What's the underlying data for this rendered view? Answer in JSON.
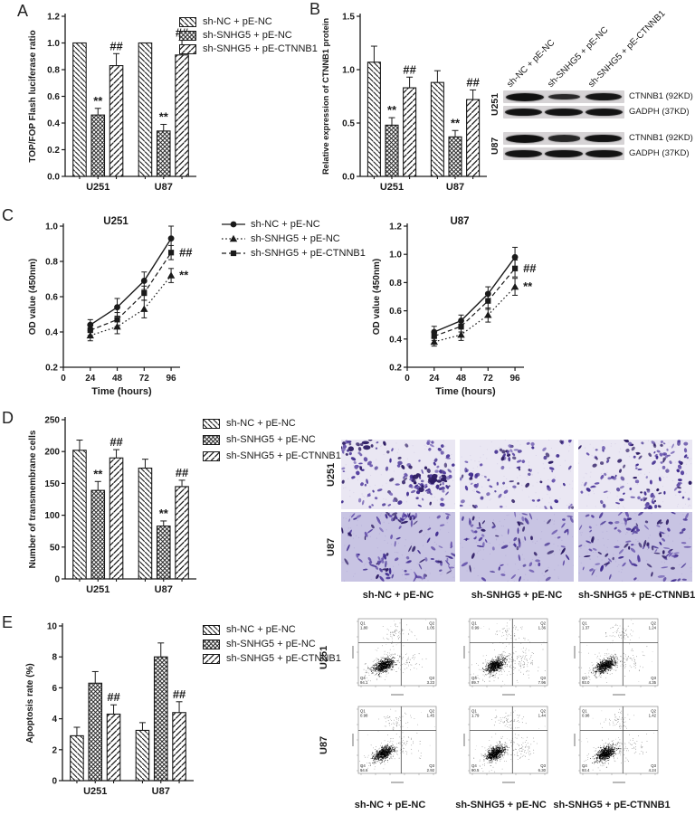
{
  "panel_labels": {
    "A": "A",
    "B": "B",
    "C": "C",
    "D": "D",
    "E": "E"
  },
  "groups": [
    "sh-NC + pE-NC",
    "sh-SNHG5 + pE-NC",
    "sh-SNHG5 + pE-CTNNB1"
  ],
  "cell_lines": [
    "U251",
    "U87"
  ],
  "accent_color": "#1a1a1a",
  "chart_data": [
    {
      "id": "A",
      "type": "bar",
      "panel": "A",
      "ylabel": "TOP/FOP Flash luciferase ratio",
      "ylim": [
        0,
        1.2
      ],
      "yticks": [
        "0.0",
        "0.2",
        "0.4",
        "0.6",
        "0.8",
        "1.0",
        "1.2"
      ],
      "categories": [
        "U251",
        "U87"
      ],
      "legend_position": "right-top",
      "grid": false,
      "series": [
        {
          "name": "sh-NC + pE-NC",
          "hatch": "diag-back",
          "values": [
            1.0,
            1.0
          ],
          "errors": [
            0,
            0
          ],
          "annotations": [
            "",
            ""
          ]
        },
        {
          "name": "sh-SNHG5 + pE-NC",
          "hatch": "cross",
          "values": [
            0.46,
            0.34
          ],
          "errors": [
            0.05,
            0.05
          ],
          "annotations": [
            "**",
            "**"
          ]
        },
        {
          "name": "sh-SNHG5 + pE-CTNNB1",
          "hatch": "diag-fwd",
          "values": [
            0.83,
            0.91
          ],
          "errors": [
            0.09,
            0.11
          ],
          "annotations": [
            "##",
            "##"
          ]
        }
      ]
    },
    {
      "id": "B",
      "type": "bar",
      "panel": "B",
      "ylabel": "Relative expression of CTNNB1 protein",
      "ylim": [
        0,
        1.5
      ],
      "yticks": [
        "0.0",
        "0.5",
        "1.0",
        "1.5"
      ],
      "categories": [
        "U251",
        "U87"
      ],
      "legend_position": "none",
      "grid": false,
      "series": [
        {
          "name": "sh-NC + pE-NC",
          "hatch": "diag-back",
          "values": [
            1.07,
            0.88
          ],
          "errors": [
            0.15,
            0.11
          ],
          "annotations": [
            "",
            ""
          ]
        },
        {
          "name": "sh-SNHG5 + pE-NC",
          "hatch": "cross",
          "values": [
            0.48,
            0.37
          ],
          "errors": [
            0.07,
            0.06
          ],
          "annotations": [
            "**",
            "**"
          ]
        },
        {
          "name": "sh-SNHG5 + pE-CTNNB1",
          "hatch": "diag-fwd",
          "values": [
            0.83,
            0.72
          ],
          "errors": [
            0.1,
            0.09
          ],
          "annotations": [
            "##",
            "##"
          ]
        }
      ]
    },
    {
      "id": "C-U251",
      "type": "line",
      "panel": "C",
      "title": "U251",
      "xlabel": "Time (hours)",
      "ylabel": "OD value (450nm)",
      "x": [
        24,
        48,
        72,
        96
      ],
      "xticks": [
        "0",
        "24",
        "48",
        "72",
        "96"
      ],
      "xlim": [
        0,
        104
      ],
      "ylim": [
        0.2,
        1.0
      ],
      "yticks": [
        "0.2",
        "0.4",
        "0.6",
        "0.8",
        "1.0"
      ],
      "legend_position": "right-of-plot",
      "grid": false,
      "series": [
        {
          "name": "sh-NC + pE-NC",
          "marker": "circle",
          "line": "solid",
          "values": [
            0.44,
            0.54,
            0.69,
            0.93
          ],
          "errors": [
            0.03,
            0.05,
            0.05,
            0.07
          ],
          "annotation": ""
        },
        {
          "name": "sh-SNHG5 + pE-NC",
          "marker": "triangle",
          "line": "dotted",
          "values": [
            0.38,
            0.43,
            0.53,
            0.72
          ],
          "errors": [
            0.03,
            0.04,
            0.05,
            0.04
          ],
          "annotation": "**"
        },
        {
          "name": "sh-SNHG5 + pE-CTNNB1",
          "marker": "square",
          "line": "dashed",
          "values": [
            0.41,
            0.47,
            0.62,
            0.85
          ],
          "errors": [
            0.03,
            0.04,
            0.04,
            0.04
          ],
          "annotation": "##"
        }
      ]
    },
    {
      "id": "C-U87",
      "type": "line",
      "panel": "C",
      "title": "U87",
      "xlabel": "Time (hours)",
      "ylabel": "OD value (450nm)",
      "x": [
        24,
        48,
        72,
        96
      ],
      "xticks": [
        "0",
        "24",
        "48",
        "72",
        "96"
      ],
      "xlim": [
        0,
        104
      ],
      "ylim": [
        0.2,
        1.2
      ],
      "yticks": [
        "0.2",
        "0.4",
        "0.6",
        "0.8",
        "1.0",
        "1.2"
      ],
      "legend_position": "none",
      "grid": false,
      "series": [
        {
          "name": "sh-NC + pE-NC",
          "marker": "circle",
          "line": "solid",
          "values": [
            0.45,
            0.53,
            0.72,
            0.98
          ],
          "errors": [
            0.04,
            0.04,
            0.05,
            0.07
          ],
          "annotation": ""
        },
        {
          "name": "sh-SNHG5 + pE-NC",
          "marker": "triangle",
          "line": "dotted",
          "values": [
            0.38,
            0.43,
            0.57,
            0.77
          ],
          "errors": [
            0.03,
            0.04,
            0.05,
            0.06
          ],
          "annotation": "**"
        },
        {
          "name": "sh-SNHG5 + pE-CTNNB1",
          "marker": "square",
          "line": "dashed",
          "values": [
            0.42,
            0.49,
            0.67,
            0.9
          ],
          "errors": [
            0.03,
            0.04,
            0.06,
            0.06
          ],
          "annotation": "##"
        }
      ]
    },
    {
      "id": "D",
      "type": "bar",
      "panel": "D",
      "ylabel": "Number of transmembrane cells",
      "ylim": [
        0,
        250
      ],
      "yticks": [
        "0",
        "50",
        "100",
        "150",
        "200",
        "250"
      ],
      "categories": [
        "U251",
        "U87"
      ],
      "legend_position": "right-top",
      "grid": false,
      "series": [
        {
          "name": "sh-NC + pE-NC",
          "hatch": "diag-back",
          "values": [
            202,
            174
          ],
          "errors": [
            16,
            14
          ],
          "annotations": [
            "",
            ""
          ]
        },
        {
          "name": "sh-SNHG5 + pE-NC",
          "hatch": "cross",
          "values": [
            139,
            83
          ],
          "errors": [
            14,
            8
          ],
          "annotations": [
            "**",
            "**"
          ]
        },
        {
          "name": "sh-SNHG5 + pE-CTNNB1",
          "hatch": "diag-fwd",
          "values": [
            190,
            145
          ],
          "errors": [
            13,
            10
          ],
          "annotations": [
            "##",
            "##"
          ]
        }
      ]
    },
    {
      "id": "E",
      "type": "bar",
      "panel": "E",
      "ylabel": "Apoptosis rate (%)",
      "ylim": [
        0,
        10
      ],
      "yticks": [
        "0",
        "2",
        "4",
        "6",
        "8",
        "10"
      ],
      "categories": [
        "U251",
        "U87"
      ],
      "legend_position": "right-top",
      "grid": false,
      "series": [
        {
          "name": "sh-NC + pE-NC",
          "hatch": "diag-back",
          "values": [
            2.9,
            3.25
          ],
          "errors": [
            0.55,
            0.5
          ],
          "annotations": [
            "",
            ""
          ]
        },
        {
          "name": "sh-SNHG5 + pE-NC",
          "hatch": "cross",
          "values": [
            6.3,
            8.0
          ],
          "errors": [
            0.75,
            0.9
          ],
          "annotations": [
            "",
            ""
          ]
        },
        {
          "name": "sh-SNHG5 + pE-CTNNB1",
          "hatch": "diag-fwd",
          "values": [
            4.3,
            4.4
          ],
          "errors": [
            0.6,
            0.7
          ],
          "annotations": [
            "##",
            "##"
          ]
        }
      ]
    }
  ],
  "western_blot": {
    "lanes": [
      "sh-NC + pE-NC",
      "sh-SNHG5 + pE-NC",
      "sh-SNHG5 + pE-CTNNB1"
    ],
    "groups": [
      {
        "cell_line": "U251",
        "rows": [
          {
            "label": "CTNNB1 (92KD)",
            "band_intensities": [
              1.0,
              0.55,
              0.9
            ]
          },
          {
            "label": "GADPH (37KD)",
            "band_intensities": [
              0.95,
              0.95,
              0.95
            ]
          }
        ]
      },
      {
        "cell_line": "U87",
        "rows": [
          {
            "label": "CTNNB1 (92KD)",
            "band_intensities": [
              1.0,
              0.6,
              0.95
            ]
          },
          {
            "label": "GADPH (37KD)",
            "band_intensities": [
              0.95,
              0.95,
              0.95
            ]
          }
        ]
      }
    ]
  },
  "transwell": {
    "row_labels": [
      "U251",
      "U87"
    ],
    "col_labels": [
      "sh-NC + pE-NC",
      "sh-SNHG5 + pE-NC",
      "sh-SNHG5 + pE-CTNNB1"
    ],
    "relative_density": [
      [
        1.0,
        0.55,
        0.8
      ],
      [
        0.95,
        0.55,
        0.75
      ]
    ],
    "bg_colors": [
      "#eae7f3",
      "#c8c4e3"
    ],
    "cell_colors": [
      "#3f2b8e",
      "#55409f",
      "#2c1b63",
      "#6a57ae"
    ]
  },
  "flow_cytometry": {
    "row_labels": [
      "U251",
      "U87"
    ],
    "col_labels": [
      "sh-NC + pE-NC",
      "sh-SNHG5 + pE-NC",
      "sh-SNHG5 + pE-CTNNB1"
    ],
    "plots": [
      [
        {
          "Q1": "1.80",
          "Q2": "1.05",
          "Q3": "3.23",
          "Q4": "94.1"
        },
        {
          "Q1": "0.99",
          "Q2": "1.36",
          "Q3": "7.96",
          "Q4": "89.7"
        },
        {
          "Q1": "1.37",
          "Q2": "1.24",
          "Q3": "4.35",
          "Q4": "93.0"
        }
      ],
      [
        {
          "Q1": "0.98",
          "Q2": "1.45",
          "Q3": "2.92",
          "Q4": "94.6"
        },
        {
          "Q1": "1.79",
          "Q2": "1.44",
          "Q3": "6.30",
          "Q4": "90.5"
        },
        {
          "Q1": "0.98",
          "Q2": "1.42",
          "Q3": "4.24",
          "Q4": "93.4"
        }
      ]
    ]
  }
}
